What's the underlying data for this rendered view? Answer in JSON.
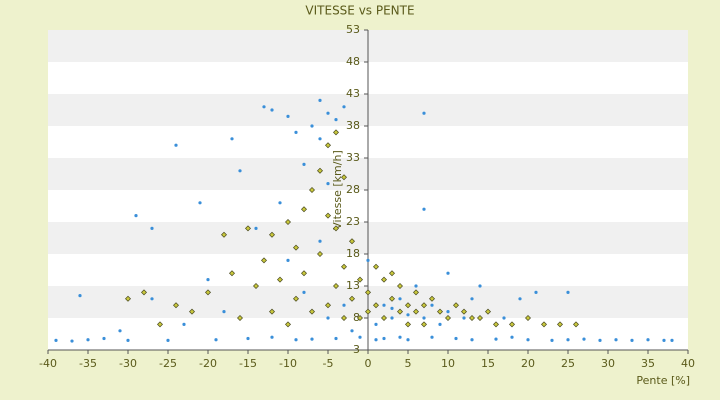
{
  "chart_data": {
    "type": "scatter",
    "title": "VITESSE vs PENTE",
    "x_label": "Pente [%]",
    "y_label": "Vitesse [km/h]",
    "xlim": [
      -40,
      40
    ],
    "xticks": [
      -40,
      -35,
      -30,
      -25,
      -20,
      -15,
      -10,
      -5,
      0,
      5,
      10,
      15,
      20,
      25,
      30,
      35,
      40
    ],
    "ylim": [
      3,
      53
    ],
    "yticks": [
      3,
      8,
      13,
      18,
      23,
      28,
      33,
      38,
      43,
      48,
      53
    ],
    "grid": "bands",
    "y_axis_cross": 0,
    "series": [
      {
        "color": "#3a8fd9",
        "marker": "dot",
        "x": [
          -39,
          -37,
          -36,
          -35,
          -33,
          -31,
          -30,
          -29,
          -27,
          -27,
          -25,
          -24,
          -23,
          -21,
          -20,
          -19,
          -18,
          -17,
          -16,
          -15,
          -14,
          -13,
          -12,
          -12,
          -11,
          -10,
          -10,
          -9,
          -9,
          -8,
          -8,
          -7,
          -7,
          -6,
          -6,
          -6,
          -5,
          -5,
          -5,
          -4,
          -4,
          -3,
          -3,
          -2,
          -1,
          0,
          0,
          1,
          1,
          2,
          2,
          3,
          3,
          4,
          4,
          5,
          5,
          6,
          6,
          7,
          7,
          7,
          8,
          8,
          9,
          10,
          10,
          11,
          12,
          13,
          13,
          14,
          15,
          16,
          17,
          18,
          19,
          20,
          21,
          22,
          23,
          25,
          25,
          27,
          29,
          31,
          33,
          35,
          37,
          38
        ],
        "values": [
          4.5,
          4.4,
          11.5,
          4.6,
          4.8,
          6,
          4.5,
          24,
          22,
          11,
          4.5,
          35,
          7,
          26,
          14,
          4.6,
          9,
          36,
          31,
          4.8,
          22,
          41,
          40.5,
          5,
          26,
          39.5,
          17,
          37,
          4.6,
          32,
          12,
          38,
          4.7,
          42,
          36,
          20,
          40,
          29,
          8,
          39,
          4.8,
          41,
          10,
          6,
          5,
          17,
          9,
          7,
          4.6,
          10,
          4.8,
          8,
          9.5,
          11,
          5,
          8.5,
          4.6,
          9,
          13,
          40,
          25,
          8,
          10,
          5,
          7,
          15,
          9,
          4.8,
          8,
          11,
          4.6,
          13,
          9,
          4.7,
          8,
          5,
          11,
          4.6,
          12,
          7,
          4.5,
          12,
          4.6,
          4.7,
          4.5,
          4.6,
          4.5,
          4.6,
          4.5,
          4.5
        ]
      },
      {
        "color": "#c9c83c",
        "marker": "diamond",
        "x": [
          -30,
          -28,
          -26,
          -24,
          -22,
          -20,
          -18,
          -17,
          -16,
          -15,
          -14,
          -13,
          -12,
          -12,
          -11,
          -10,
          -10,
          -9,
          -9,
          -8,
          -8,
          -7,
          -7,
          -6,
          -6,
          -5,
          -5,
          -5,
          -4,
          -4,
          -4,
          -3,
          -3,
          -3,
          -2,
          -2,
          -1,
          -1,
          0,
          0,
          1,
          1,
          2,
          2,
          3,
          3,
          4,
          4,
          5,
          5,
          6,
          6,
          7,
          7,
          8,
          9,
          10,
          11,
          12,
          13,
          14,
          15,
          16,
          18,
          20,
          22,
          24,
          26
        ],
        "values": [
          11,
          12,
          7,
          10,
          9,
          12,
          21,
          15,
          8,
          22,
          13,
          17,
          21,
          9,
          14,
          23,
          7,
          19,
          11,
          25,
          15,
          28,
          9,
          31,
          18,
          35,
          24,
          10,
          37,
          22,
          13,
          30,
          16,
          8,
          20,
          11,
          14,
          8,
          12,
          9,
          16,
          10,
          14,
          8,
          15,
          11,
          13,
          9,
          10,
          7,
          12,
          9,
          10,
          7,
          11,
          9,
          8,
          10,
          9,
          8,
          8,
          9,
          7,
          7,
          8,
          7,
          7,
          7
        ]
      }
    ]
  }
}
